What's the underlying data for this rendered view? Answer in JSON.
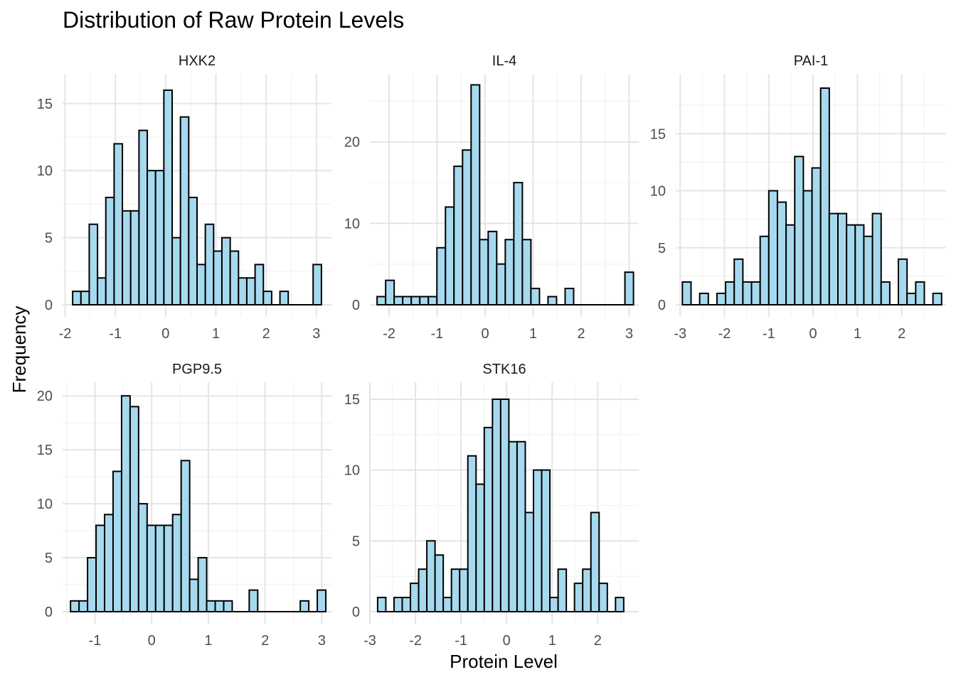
{
  "chart_data": {
    "type": "bar",
    "title": "Distribution of Raw Protein Levels",
    "xlabel": "Protein Level",
    "ylabel": "Frequency",
    "bar_color": "#A6D9EE",
    "panels": [
      {
        "name": "HXK2",
        "xticks": [
          "-2",
          "-1",
          "0",
          "1",
          "2",
          "3"
        ],
        "yticks": [
          "0",
          "5",
          "10",
          "15"
        ],
        "xlim": [
          -2.05,
          3.3
        ],
        "ylim": [
          0,
          17
        ],
        "bins": {
          "start": -1.85,
          "width": 0.165,
          "counts": [
            1,
            1,
            6,
            2,
            8,
            12,
            7,
            7,
            13,
            10,
            10,
            16,
            5,
            14,
            8,
            3,
            6,
            4,
            5,
            4,
            2,
            2,
            3,
            1,
            0,
            1,
            0,
            0,
            0,
            3
          ]
        }
      },
      {
        "name": "IL-4",
        "xticks": [
          "-2",
          "-1",
          "0",
          "1",
          "2",
          "3"
        ],
        "yticks": [
          "0",
          "10",
          "20"
        ],
        "xlim": [
          -2.4,
          3.2
        ],
        "ylim": [
          0,
          28
        ],
        "bins": {
          "start": -2.25,
          "width": 0.178,
          "counts": [
            1,
            3,
            1,
            1,
            1,
            1,
            1,
            7,
            12,
            17,
            19,
            27,
            8,
            9,
            5,
            8,
            15,
            8,
            2,
            0,
            1,
            0,
            2,
            0,
            0,
            0,
            0,
            0,
            0,
            4
          ]
        }
      },
      {
        "name": "PAI-1",
        "xticks": [
          "-3",
          "-2",
          "-1",
          "0",
          "1",
          "2"
        ],
        "yticks": [
          "0",
          "5",
          "10",
          "15"
        ],
        "xlim": [
          -3.1,
          3.0
        ],
        "ylim": [
          0,
          20
        ],
        "bins": {
          "start": -2.95,
          "width": 0.195,
          "counts": [
            2,
            0,
            1,
            0,
            1,
            2,
            4,
            2,
            2,
            6,
            10,
            9,
            7,
            13,
            10,
            12,
            19,
            8,
            8,
            7,
            7,
            6,
            8,
            2,
            0,
            4,
            1,
            2,
            0,
            1
          ]
        }
      },
      {
        "name": "PGP9.5",
        "xticks": [
          "-1",
          "0",
          "1",
          "2",
          "3"
        ],
        "yticks": [
          "0",
          "5",
          "10",
          "15",
          "20"
        ],
        "xlim": [
          -1.57,
          3.17
        ],
        "ylim": [
          0,
          21
        ],
        "bins": {
          "start": -1.43,
          "width": 0.15,
          "counts": [
            1,
            1,
            5,
            8,
            9,
            13,
            20,
            19,
            10,
            8,
            8,
            8,
            9,
            14,
            3,
            5,
            1,
            1,
            1,
            0,
            0,
            2,
            0,
            0,
            0,
            0,
            0,
            1,
            0,
            2
          ]
        }
      },
      {
        "name": "STK16",
        "xticks": [
          "-3",
          "-2",
          "-1",
          "0",
          "1",
          "2"
        ],
        "yticks": [
          "0",
          "5",
          "10",
          "15"
        ],
        "xlim": [
          -3.0,
          2.9
        ],
        "ylim": [
          0,
          16
        ],
        "bins": {
          "start": -2.83,
          "width": 0.18,
          "counts": [
            1,
            0,
            1,
            1,
            2,
            3,
            5,
            4,
            1,
            3,
            3,
            11,
            9,
            13,
            15,
            15,
            12,
            12,
            7,
            10,
            10,
            1,
            3,
            0,
            2,
            3,
            7,
            2,
            0,
            1
          ]
        }
      }
    ]
  }
}
